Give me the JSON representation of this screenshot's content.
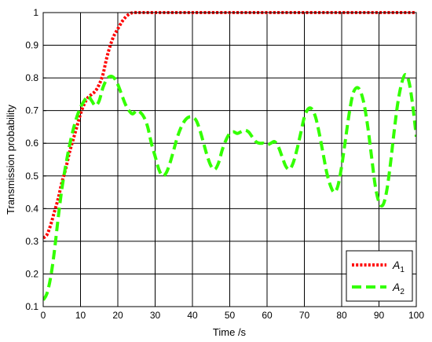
{
  "chart_data": {
    "type": "line",
    "xlabel": "Time /s",
    "ylabel": "Transmission probability",
    "xlim": [
      0,
      100
    ],
    "ylim": [
      0.1,
      1
    ],
    "xticks": [
      "0",
      "10",
      "20",
      "30",
      "40",
      "50",
      "60",
      "70",
      "80",
      "90",
      "100"
    ],
    "yticks": [
      "0.1",
      "0.2",
      "0.3",
      "0.4",
      "0.5",
      "0.6",
      "0.7",
      "0.8",
      "0.9",
      "1"
    ],
    "grid": true,
    "legend_position": "bottom-right",
    "series": [
      {
        "name": "A1",
        "label_main": "A",
        "label_sub": "1",
        "color": "#ff0000",
        "style": "dotted",
        "x": [
          0,
          1,
          2,
          3,
          4,
          5,
          6,
          7,
          8,
          9,
          10,
          11,
          12,
          13,
          14,
          15,
          16,
          17,
          18,
          19,
          20,
          21,
          22,
          23,
          24,
          25,
          26,
          30,
          40,
          50,
          60,
          70,
          80,
          90,
          100
        ],
        "y": [
          0.31,
          0.32,
          0.35,
          0.39,
          0.43,
          0.48,
          0.52,
          0.57,
          0.61,
          0.65,
          0.69,
          0.72,
          0.74,
          0.75,
          0.76,
          0.78,
          0.81,
          0.86,
          0.9,
          0.93,
          0.95,
          0.97,
          0.985,
          0.995,
          1.0,
          1.0,
          1.0,
          1.0,
          1.0,
          1.0,
          1.0,
          1.0,
          1.0,
          1.0,
          1.0
        ]
      },
      {
        "name": "A2",
        "label_main": "A",
        "label_sub": "2",
        "color": "#33ff00",
        "style": "dashed",
        "x": [
          0,
          1,
          2,
          3,
          4,
          5,
          6,
          7,
          8,
          9,
          10,
          11,
          12,
          13,
          14,
          15,
          16,
          17,
          18,
          19,
          20,
          21,
          22,
          23,
          24,
          25,
          26,
          27,
          28,
          29,
          30,
          31,
          32,
          33,
          34,
          35,
          36,
          37,
          38,
          39,
          40,
          41,
          42,
          43,
          44,
          45,
          46,
          47,
          48,
          49,
          50,
          51,
          52,
          53,
          54,
          55,
          56,
          57,
          58,
          59,
          60,
          61,
          62,
          63,
          64,
          65,
          66,
          67,
          68,
          69,
          70,
          71,
          72,
          73,
          74,
          75,
          76,
          77,
          78,
          79,
          80,
          81,
          82,
          83,
          84,
          85,
          86,
          87,
          88,
          89,
          90,
          91,
          92,
          93,
          94,
          95,
          96,
          97,
          98,
          99,
          100
        ],
        "y": [
          0.12,
          0.14,
          0.19,
          0.27,
          0.37,
          0.46,
          0.53,
          0.59,
          0.64,
          0.68,
          0.71,
          0.73,
          0.745,
          0.73,
          0.715,
          0.73,
          0.77,
          0.795,
          0.805,
          0.8,
          0.78,
          0.75,
          0.72,
          0.7,
          0.69,
          0.7,
          0.695,
          0.68,
          0.65,
          0.6,
          0.56,
          0.52,
          0.5,
          0.51,
          0.54,
          0.58,
          0.62,
          0.65,
          0.67,
          0.68,
          0.68,
          0.67,
          0.64,
          0.6,
          0.56,
          0.53,
          0.52,
          0.54,
          0.58,
          0.61,
          0.63,
          0.635,
          0.63,
          0.635,
          0.64,
          0.635,
          0.62,
          0.605,
          0.6,
          0.6,
          0.595,
          0.6,
          0.605,
          0.59,
          0.56,
          0.53,
          0.52,
          0.54,
          0.58,
          0.63,
          0.68,
          0.705,
          0.705,
          0.68,
          0.63,
          0.57,
          0.51,
          0.47,
          0.45,
          0.47,
          0.53,
          0.61,
          0.69,
          0.75,
          0.77,
          0.76,
          0.72,
          0.65,
          0.56,
          0.47,
          0.42,
          0.41,
          0.45,
          0.53,
          0.63,
          0.72,
          0.78,
          0.81,
          0.79,
          0.72,
          0.62
        ]
      }
    ]
  }
}
